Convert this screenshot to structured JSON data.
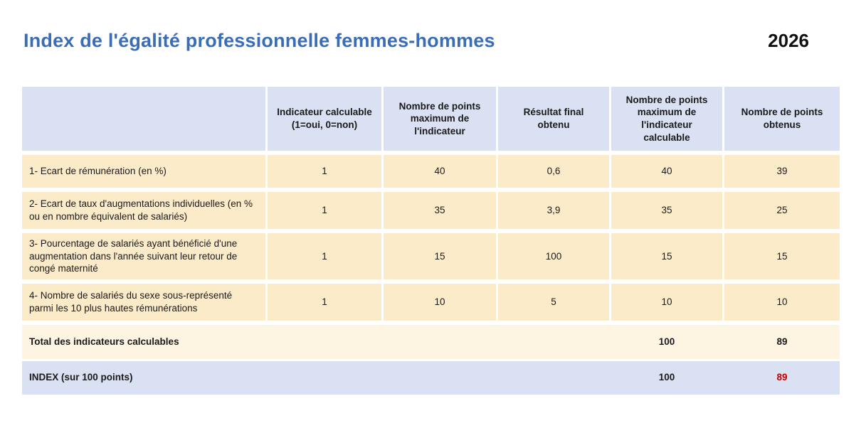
{
  "header": {
    "title": "Index de l'égalité professionnelle femmes-hommes",
    "year": "2026"
  },
  "colors": {
    "title_blue": "#3a6db8",
    "header_band": "#d9e1f2",
    "indicator_band": "#fcebc9",
    "total_band": "#fdf5e2",
    "index_band": "#d9e1f2",
    "index_score_red": "#c00000"
  },
  "table": {
    "columns": [
      "",
      "Indicateur calculable (1=oui, 0=non)",
      "Nombre de points maximum de l'indicateur",
      "Résultat final obtenu",
      "Nombre de points maximum de l'indicateur calculable",
      "Nombre de points obtenus"
    ],
    "rows": [
      {
        "label": "1- Ecart de rémunération (en %)",
        "values": [
          "1",
          "40",
          "0,6",
          "40",
          "39"
        ]
      },
      {
        "label": "2- Ecart de taux d'augmentations individuelles (en % ou en nombre équivalent de salariés)",
        "values": [
          "1",
          "35",
          "3,9",
          "35",
          "25"
        ]
      },
      {
        "label": "3- Pourcentage de salariés ayant bénéficié d'une augmentation dans l'année suivant leur retour de congé maternité",
        "values": [
          "1",
          "15",
          "100",
          "15",
          "15"
        ]
      },
      {
        "label": "4- Nombre de salariés du sexe sous-représenté parmi les 10 plus hautes rémunérations",
        "values": [
          "1",
          "10",
          "5",
          "10",
          "10"
        ]
      }
    ],
    "total_row": {
      "label": "Total des indicateurs calculables",
      "max_points_calculable": "100",
      "points_obtenus": "89"
    },
    "index_row": {
      "label": "INDEX (sur 100 points)",
      "max_points_calculable": "100",
      "points_obtenus": "89"
    }
  }
}
